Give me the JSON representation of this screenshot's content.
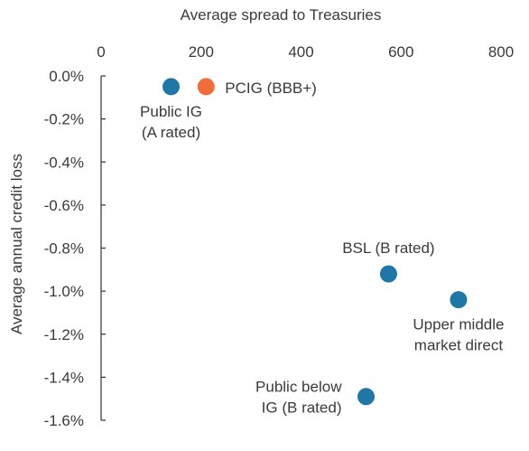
{
  "chart_data": {
    "type": "scatter",
    "title": "",
    "xlabel": "Average spread to Treasuries",
    "ylabel": "Average annual credit loss",
    "x_axis_position": "top",
    "xlim": [
      0,
      800
    ],
    "ylim": [
      -1.6,
      0.0
    ],
    "x_ticks": [
      0,
      200,
      400,
      600,
      800
    ],
    "x_tick_labels": [
      "0",
      "200",
      "400",
      "600",
      "800"
    ],
    "y_ticks": [
      0.0,
      -0.2,
      -0.4,
      -0.6,
      -0.8,
      -1.0,
      -1.2,
      -1.4,
      -1.6
    ],
    "y_tick_labels": [
      "0.0%",
      "-0.2%",
      "-0.4%",
      "-0.6%",
      "-0.8%",
      "-1.0%",
      "-1.2%",
      "-1.4%",
      "-1.6%"
    ],
    "grid": false,
    "points": [
      {
        "label_lines": [
          "Public IG",
          "(A rated)"
        ],
        "x": 140,
        "y": -0.05,
        "color": "#1f77a8",
        "label_pos": "below"
      },
      {
        "label_lines": [
          "PCIG (BBB+)"
        ],
        "x": 210,
        "y": -0.05,
        "color": "#f26b3a",
        "label_pos": "right"
      },
      {
        "label_lines": [
          "BSL (B rated)"
        ],
        "x": 575,
        "y": -0.92,
        "color": "#1f77a8",
        "label_pos": "above"
      },
      {
        "label_lines": [
          "Upper middle",
          "market direct"
        ],
        "x": 715,
        "y": -1.04,
        "color": "#1f77a8",
        "label_pos": "below"
      },
      {
        "label_lines": [
          "Public below",
          "IG (B rated)"
        ],
        "x": 530,
        "y": -1.49,
        "color": "#1f77a8",
        "label_pos": "left"
      }
    ]
  }
}
